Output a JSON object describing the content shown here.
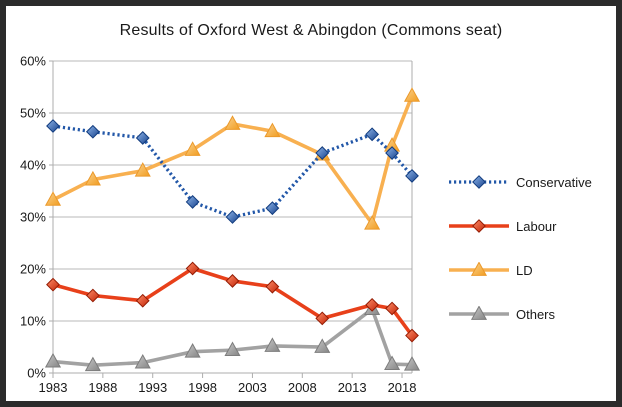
{
  "window": {
    "border_color": "#2B2B2B",
    "background": "#FFFFFF"
  },
  "chart_data": {
    "type": "line",
    "title": "Results of Oxford West & Abingdon (Commons seat)",
    "xlabel": "",
    "ylabel": "",
    "x": [
      1983,
      1987,
      1992,
      1997,
      2001,
      2005,
      2010,
      2015,
      2017,
      2019
    ],
    "x_range": [
      1983,
      2019
    ],
    "y_range": [
      0,
      60
    ],
    "grid": "horizontal",
    "legend_position": "right",
    "x_ticks": {
      "values": [
        1983,
        1988,
        1993,
        1998,
        2003,
        2008,
        2013,
        2018
      ],
      "labels": [
        "1983",
        "1988",
        "1993",
        "1998",
        "2003",
        "2008",
        "2013",
        "2018"
      ]
    },
    "y_ticks": {
      "values": [
        0,
        10,
        20,
        30,
        40,
        50,
        60
      ],
      "labels": [
        "0%",
        "10%",
        "20%",
        "30%",
        "40%",
        "50%",
        "60%"
      ]
    },
    "axis_color": "#ADADAD",
    "grid_color": "#B8B8B8",
    "text_color": "#1A1A1A",
    "series": [
      {
        "name": "Conservative",
        "marker": "diamond",
        "line_style": "dotted",
        "line_color": "#2257A8",
        "marker_light": "#8FB6EA",
        "marker_dark": "#16418C",
        "marker_stroke": "#123C7E",
        "values": [
          47.5,
          46.4,
          45.2,
          32.9,
          30.0,
          31.7,
          42.3,
          45.9,
          42.3,
          37.9
        ]
      },
      {
        "name": "Labour",
        "marker": "diamond",
        "line_style": "solid",
        "line_color": "#E8401A",
        "marker_light": "#FF8E6B",
        "marker_dark": "#C22405",
        "marker_stroke": "#931B03",
        "values": [
          17.0,
          14.9,
          13.9,
          20.1,
          17.7,
          16.6,
          10.5,
          13.1,
          12.4,
          7.2
        ]
      },
      {
        "name": "LD",
        "marker": "triangle",
        "line_style": "solid",
        "line_color": "#F8B050",
        "marker_light": "#FBD28F",
        "marker_dark": "#F19D20",
        "marker_stroke": "#EB992A",
        "values": [
          33.3,
          37.2,
          38.9,
          42.9,
          47.9,
          46.5,
          42.0,
          28.7,
          43.7,
          53.3
        ]
      },
      {
        "name": "Others",
        "marker": "triangle",
        "line_style": "solid",
        "line_color": "#A2A2A2",
        "marker_light": "#C8C8C8",
        "marker_dark": "#858585",
        "marker_stroke": "#7C7C7C",
        "values": [
          2.2,
          1.5,
          2.0,
          4.1,
          4.4,
          5.2,
          5.0,
          12.3,
          1.7,
          1.6
        ]
      }
    ]
  }
}
